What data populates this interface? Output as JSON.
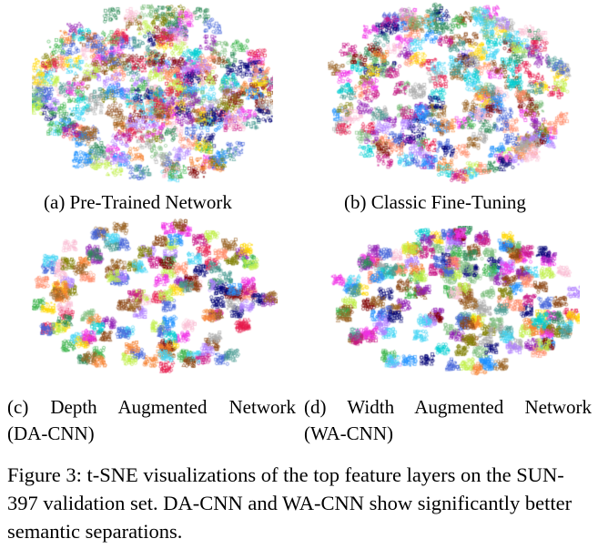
{
  "panels": [
    {
      "id": "a",
      "caption": "(a) Pre-Trained Network",
      "style": "dense"
    },
    {
      "id": "b",
      "caption": "(b) Classic Fine-Tuning",
      "style": "medium"
    },
    {
      "id": "c",
      "caption_line1": "(c) Depth Augmented Network",
      "caption_line2": "(DA-CNN)",
      "style": "clustered"
    },
    {
      "id": "d",
      "caption_line1": "(d) Width Augmented Network",
      "caption_line2": "(WA-CNN)",
      "style": "clustered-dense"
    }
  ],
  "figure_caption": "Figure 3: t-SNE visualizations of the top feature layers on the SUN-397 validation set. DA-CNN and WA-CNN show significantly better semantic separations."
}
